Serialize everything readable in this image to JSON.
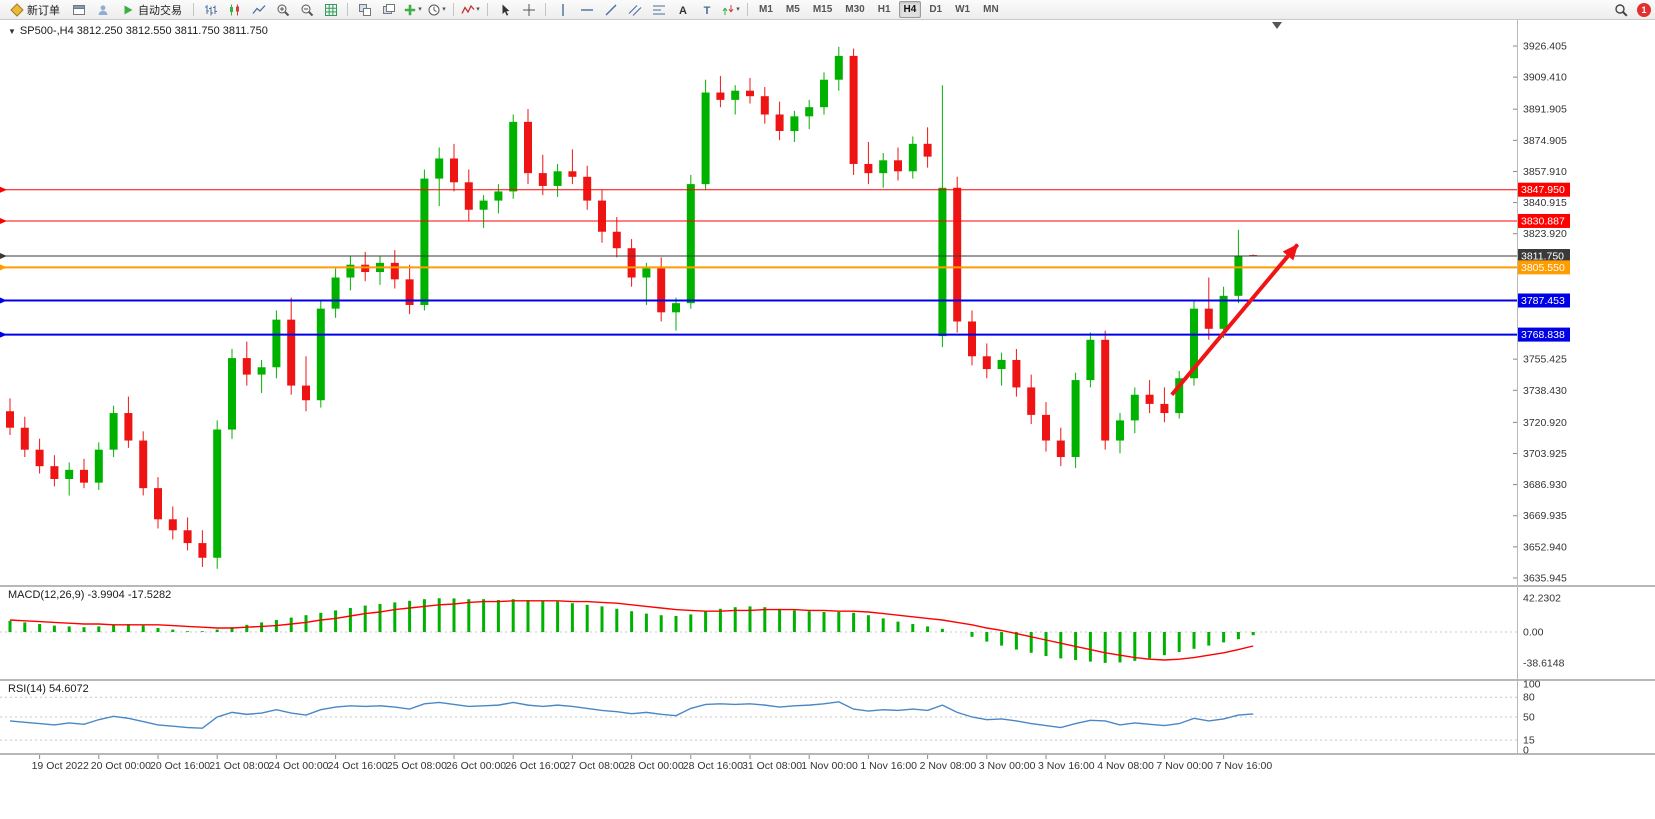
{
  "toolbar": {
    "new_order_label": "新订单",
    "auto_trading_label": "自动交易",
    "items": [
      {
        "type": "button",
        "name": "new-order-button",
        "icon": "neworder",
        "label_key": "new_order_label"
      },
      {
        "type": "icon",
        "name": "charts-window-icon",
        "icon": "window"
      },
      {
        "type": "icon",
        "name": "market-watch-icon",
        "icon": "profile"
      },
      {
        "type": "button",
        "name": "auto-trading-button",
        "icon": "play",
        "label_key": "auto_trading_label"
      },
      {
        "type": "sep"
      },
      {
        "type": "icon",
        "name": "bar-chart-icon",
        "icon": "bars"
      },
      {
        "type": "icon",
        "name": "candlestick-chart-icon",
        "icon": "candles"
      },
      {
        "type": "icon",
        "name": "line-chart-icon",
        "icon": "linechart"
      },
      {
        "type": "icon",
        "name": "zoom-in-icon",
        "icon": "zoomin"
      },
      {
        "type": "icon",
        "name": "zoom-out-icon",
        "icon": "zoomout"
      },
      {
        "type": "icon",
        "name": "grid-icon",
        "icon": "grid"
      },
      {
        "type": "sep"
      },
      {
        "type": "icon",
        "name": "tile-windows-icon",
        "icon": "tile"
      },
      {
        "type": "icon",
        "name": "cascade-windows-icon",
        "icon": "cascade"
      },
      {
        "type": "icon",
        "name": "new-chart-icon",
        "icon": "plus",
        "caret": true
      },
      {
        "type": "icon",
        "name": "periods-icon",
        "icon": "clock",
        "caret": true
      },
      {
        "type": "sep"
      },
      {
        "type": "icon",
        "name": "indicators-icon",
        "icon": "indicator",
        "caret": true
      },
      {
        "type": "sep"
      },
      {
        "type": "icon",
        "name": "cursor-icon",
        "icon": "cursor"
      },
      {
        "type": "icon",
        "name": "crosshair-icon",
        "icon": "crosshair"
      },
      {
        "type": "sep"
      },
      {
        "type": "icon",
        "name": "vertical-line-icon",
        "icon": "vline"
      },
      {
        "type": "icon",
        "name": "horizontal-line-icon",
        "icon": "hline"
      },
      {
        "type": "icon",
        "name": "trendline-icon",
        "icon": "trend"
      },
      {
        "type": "icon",
        "name": "channel-icon",
        "icon": "channel"
      },
      {
        "type": "icon",
        "name": "fibonacci-icon",
        "icon": "fibo"
      },
      {
        "type": "icon",
        "name": "text-tool-icon",
        "icon": "textA"
      },
      {
        "type": "icon",
        "name": "label-tool-icon",
        "icon": "textT"
      },
      {
        "type": "icon",
        "name": "arrows-tool-icon",
        "icon": "arrows",
        "caret": true
      },
      {
        "type": "sep"
      }
    ],
    "timeframes": [
      "M1",
      "M5",
      "M15",
      "M30",
      "H1",
      "H4",
      "D1",
      "W1",
      "MN"
    ],
    "active_timeframe": "H4",
    "notification_count": "1"
  },
  "chart": {
    "title_text": "SP500-,H4 3812.250 3812.550 3811.750 3811.750",
    "y_ticks": [
      "3926.405",
      "3909.410",
      "3891.905",
      "3874.905",
      "3857.910",
      "3840.915",
      "3823.920",
      "3755.425",
      "3738.430",
      "3720.920",
      "3703.925",
      "3686.930",
      "3669.935",
      "3652.940",
      "3635.945"
    ],
    "colors": {
      "up": "#00B200",
      "down": "#EE1414",
      "current_line": "#3A3A3A",
      "resistance": "#FF0000",
      "pivot": "#FF9C00",
      "support": "#0000E6",
      "arrow": "#F01414",
      "macd_hist": "#00B200",
      "macd_signal": "#FF0000",
      "rsi_line": "#4A87C7"
    },
    "levels": [
      {
        "label": "3847.950",
        "value": 3847.95,
        "color": "#FF0000",
        "width": 1,
        "kind": "resistance"
      },
      {
        "label": "3830.887",
        "value": 3830.887,
        "color": "#FF0000",
        "width": 1,
        "kind": "resistance"
      },
      {
        "label": "3811.750",
        "value": 3811.75,
        "color": "#3A3A3A",
        "width": 1,
        "kind": "current-price"
      },
      {
        "label": "3805.550",
        "value": 3805.55,
        "color": "#FF9C00",
        "width": 2,
        "kind": "pivot"
      },
      {
        "label": "3787.453",
        "value": 3787.453,
        "color": "#0000E6",
        "width": 2,
        "kind": "support"
      },
      {
        "label": "3768.838",
        "value": 3768.838,
        "color": "#0000E6",
        "width": 2,
        "kind": "support"
      }
    ]
  },
  "panels": {
    "macd": {
      "title": "MACD(12,26,9) -3.9904 -17.5282",
      "yticks": [
        "42.2302",
        "0.00",
        "-38.6148"
      ]
    },
    "rsi": {
      "title": "RSI(14) 54.6072",
      "yticks": [
        "100",
        "80",
        "50",
        "15",
        "0"
      ],
      "levels": [
        80,
        50,
        15
      ]
    }
  },
  "chart_data": {
    "type": "candlestick",
    "symbol": "SP500-",
    "timeframe": "H4",
    "title": "SP500-,H4 3812.250 3812.550 3811.750 3811.750",
    "ylim": [
      3635.945,
      3926.405
    ],
    "x_time_labels": [
      "19 Oct 2022",
      "20 Oct 00:00",
      "20 Oct 16:00",
      "21 Oct 08:00",
      "24 Oct 00:00",
      "24 Oct 16:00",
      "25 Oct 08:00",
      "26 Oct 00:00",
      "26 Oct 16:00",
      "27 Oct 08:00",
      "28 Oct 00:00",
      "28 Oct 16:00",
      "31 Oct 08:00",
      "1 Nov 00:00",
      "1 Nov 16:00",
      "2 Nov 08:00",
      "3 Nov 00:00",
      "3 Nov 16:00",
      "4 Nov 08:00",
      "7 Nov 00:00",
      "7 Nov 16:00"
    ],
    "ohlc": [
      [
        3727,
        3734,
        3714,
        3718
      ],
      [
        3718,
        3724,
        3702,
        3706
      ],
      [
        3706,
        3712,
        3693,
        3697
      ],
      [
        3697,
        3703,
        3686,
        3690
      ],
      [
        3690,
        3699,
        3681,
        3695
      ],
      [
        3695,
        3701,
        3685,
        3688
      ],
      [
        3688,
        3710,
        3684,
        3706
      ],
      [
        3706,
        3730,
        3702,
        3726
      ],
      [
        3726,
        3735,
        3707,
        3711
      ],
      [
        3711,
        3716,
        3681,
        3685
      ],
      [
        3685,
        3691,
        3663,
        3668
      ],
      [
        3668,
        3675,
        3657,
        3662
      ],
      [
        3662,
        3669,
        3651,
        3655
      ],
      [
        3655,
        3662,
        3642,
        3647
      ],
      [
        3647,
        3722,
        3641,
        3717
      ],
      [
        3717,
        3761,
        3712,
        3756
      ],
      [
        3756,
        3765,
        3741,
        3747
      ],
      [
        3747,
        3755,
        3737,
        3751
      ],
      [
        3751,
        3782,
        3745,
        3777
      ],
      [
        3777,
        3789,
        3736,
        3741
      ],
      [
        3741,
        3757,
        3727,
        3733
      ],
      [
        3733,
        3787,
        3729,
        3783
      ],
      [
        3783,
        3805,
        3778,
        3800
      ],
      [
        3800,
        3812,
        3793,
        3807
      ],
      [
        3807,
        3814,
        3798,
        3803
      ],
      [
        3803,
        3812,
        3796,
        3808
      ],
      [
        3808,
        3815,
        3794,
        3799
      ],
      [
        3799,
        3807,
        3780,
        3785
      ],
      [
        3785,
        3859,
        3782,
        3854
      ],
      [
        3854,
        3871,
        3839,
        3865
      ],
      [
        3865,
        3873,
        3847,
        3852
      ],
      [
        3852,
        3859,
        3831,
        3837
      ],
      [
        3837,
        3845,
        3827,
        3842
      ],
      [
        3842,
        3851,
        3835,
        3847
      ],
      [
        3847,
        3889,
        3843,
        3885
      ],
      [
        3885,
        3892,
        3851,
        3857
      ],
      [
        3857,
        3867,
        3845,
        3850
      ],
      [
        3850,
        3862,
        3844,
        3858
      ],
      [
        3858,
        3870,
        3851,
        3855
      ],
      [
        3855,
        3861,
        3837,
        3842
      ],
      [
        3842,
        3848,
        3819,
        3825
      ],
      [
        3825,
        3833,
        3811,
        3816
      ],
      [
        3816,
        3821,
        3795,
        3800
      ],
      [
        3800,
        3808,
        3785,
        3805
      ],
      [
        3805,
        3811,
        3776,
        3781
      ],
      [
        3781,
        3789,
        3771,
        3786
      ],
      [
        3786,
        3856,
        3783,
        3851
      ],
      [
        3851,
        3908,
        3848,
        3901
      ],
      [
        3901,
        3910,
        3893,
        3897
      ],
      [
        3897,
        3905,
        3889,
        3902
      ],
      [
        3902,
        3909,
        3895,
        3899
      ],
      [
        3899,
        3904,
        3884,
        3889
      ],
      [
        3889,
        3896,
        3875,
        3880
      ],
      [
        3880,
        3891,
        3874,
        3888
      ],
      [
        3888,
        3897,
        3881,
        3893
      ],
      [
        3893,
        3912,
        3889,
        3908
      ],
      [
        3908,
        3926,
        3902,
        3921
      ],
      [
        3921,
        3925,
        3856,
        3862
      ],
      [
        3862,
        3874,
        3851,
        3857
      ],
      [
        3857,
        3868,
        3849,
        3864
      ],
      [
        3864,
        3871,
        3853,
        3858
      ],
      [
        3858,
        3877,
        3854,
        3873
      ],
      [
        3873,
        3882,
        3860,
        3866
      ],
      [
        3768,
        3905,
        3762,
        3849
      ],
      [
        3849,
        3855,
        3770,
        3776
      ],
      [
        3776,
        3782,
        3752,
        3757
      ],
      [
        3757,
        3764,
        3745,
        3750
      ],
      [
        3750,
        3759,
        3741,
        3755
      ],
      [
        3755,
        3761,
        3735,
        3740
      ],
      [
        3740,
        3747,
        3720,
        3725
      ],
      [
        3725,
        3732,
        3705,
        3711
      ],
      [
        3711,
        3718,
        3697,
        3702
      ],
      [
        3702,
        3748,
        3696,
        3744
      ],
      [
        3744,
        3770,
        3740,
        3766
      ],
      [
        3766,
        3771,
        3706,
        3711
      ],
      [
        3711,
        3726,
        3704,
        3722
      ],
      [
        3722,
        3740,
        3715,
        3736
      ],
      [
        3736,
        3744,
        3726,
        3731
      ],
      [
        3731,
        3740,
        3721,
        3726
      ],
      [
        3726,
        3749,
        3723,
        3745
      ],
      [
        3745,
        3788,
        3741,
        3783
      ],
      [
        3783,
        3800,
        3766,
        3772
      ],
      [
        3772,
        3795,
        3767,
        3790
      ],
      [
        3790,
        3826,
        3786,
        3812
      ],
      [
        3812.25,
        3812.55,
        3811.75,
        3811.75
      ]
    ],
    "indicators": [
      {
        "name": "MACD(12,26,9)",
        "current": [
          -3.9904,
          -17.5282
        ],
        "yticks": [
          42.2302,
          0.0,
          -38.6148
        ],
        "histogram": [
          14,
          12,
          10,
          8,
          7,
          6,
          7,
          9,
          10,
          8,
          5,
          3,
          1,
          1,
          3,
          6,
          9,
          12,
          15,
          18,
          21,
          24,
          27,
          30,
          33,
          35,
          37,
          39,
          41,
          42.2,
          42,
          41,
          41,
          40,
          41,
          40,
          39,
          38,
          36,
          34,
          32,
          29,
          26,
          23,
          21,
          20,
          22,
          26,
          29,
          31,
          32,
          31,
          29,
          27,
          26,
          25,
          25,
          24,
          21,
          17,
          13,
          10,
          7,
          4,
          0,
          -6,
          -12,
          -17,
          -22,
          -26,
          -30,
          -33,
          -35,
          -37,
          -38.6,
          -38,
          -36,
          -33,
          -29,
          -25,
          -21,
          -17,
          -13,
          -9,
          -4
        ],
        "signal": [
          15,
          14,
          13,
          12,
          11,
          10,
          10,
          9,
          9,
          9,
          9,
          8,
          7,
          6,
          5,
          5,
          6,
          7,
          8,
          10,
          12,
          15,
          17,
          20,
          23,
          25,
          28,
          30,
          32,
          34,
          35,
          37,
          38,
          38,
          39,
          39,
          39,
          39,
          38,
          38,
          37,
          36,
          34,
          32,
          30,
          28,
          27,
          26,
          26,
          27,
          27,
          28,
          28,
          28,
          27,
          27,
          26,
          26,
          25,
          23,
          21,
          19,
          17,
          15,
          12,
          9,
          5,
          2,
          -2,
          -6,
          -10,
          -14,
          -18,
          -22,
          -26,
          -29,
          -32,
          -34,
          -35,
          -34,
          -32,
          -29,
          -26,
          -22,
          -17.5
        ]
      },
      {
        "name": "RSI(14)",
        "current": 54.6072,
        "yticks": [
          100,
          80,
          50,
          15,
          0
        ],
        "values": [
          44,
          42,
          40,
          38,
          41,
          39,
          46,
          51,
          48,
          43,
          38,
          36,
          34,
          33,
          50,
          57,
          54,
          56,
          61,
          56,
          53,
          61,
          65,
          67,
          66,
          67,
          65,
          62,
          70,
          72,
          69,
          66,
          67,
          68,
          72,
          68,
          66,
          68,
          66,
          63,
          60,
          58,
          55,
          57,
          54,
          52,
          63,
          69,
          70,
          69,
          70,
          68,
          65,
          67,
          68,
          70,
          73,
          62,
          59,
          61,
          60,
          62,
          60,
          68,
          57,
          50,
          46,
          47,
          44,
          40,
          37,
          34,
          40,
          45,
          44,
          38,
          41,
          39,
          37,
          40,
          48,
          44,
          47,
          53,
          54.6
        ]
      }
    ],
    "horizontal_levels": [
      3847.95,
      3830.887,
      3811.75,
      3805.55,
      3787.453,
      3768.838
    ],
    "annotation_arrow": {
      "from_bar": 78.5,
      "from_price": 3736,
      "to_bar": 87,
      "to_price": 3818,
      "color": "#F01414"
    }
  }
}
